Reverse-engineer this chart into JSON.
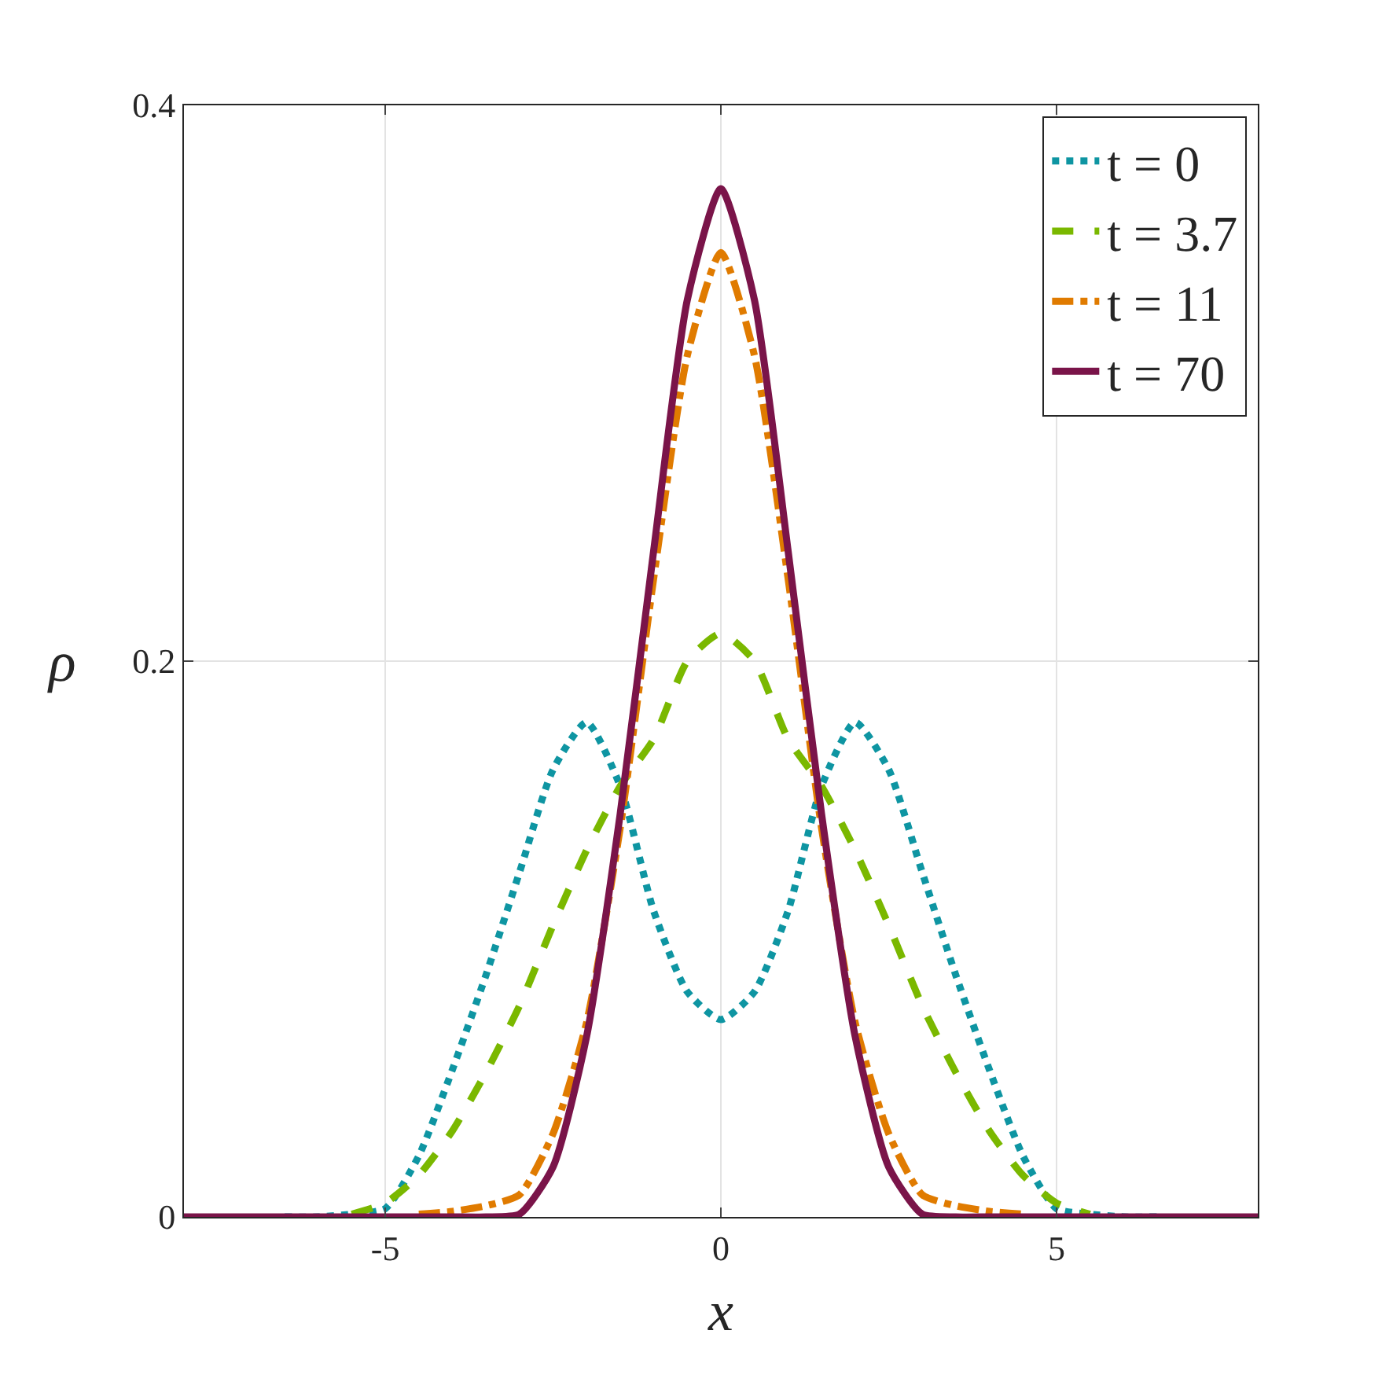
{
  "chart_data": {
    "type": "line",
    "xlabel": "x",
    "ylabel": "ρ",
    "x": [
      -8,
      -7.5,
      -7,
      -6.5,
      -6,
      -5.5,
      -5,
      -4.5,
      -4,
      -3.5,
      -3,
      -2.5,
      -2,
      -1.5,
      -1,
      -0.5,
      0,
      0.5,
      1,
      1.5,
      2,
      2.5,
      3,
      3.5,
      4,
      4.5,
      5,
      5.5,
      6,
      6.5,
      7,
      7.5,
      8
    ],
    "series": [
      {
        "name": "t = 0",
        "color": "#0e95a2",
        "line_style": "dotted",
        "x": [
          -6.5,
          -6,
          -5.5,
          -5,
          -4.5,
          -4,
          -3.5,
          -3,
          -2.5,
          -2,
          -1.5,
          -1,
          -0.5,
          0,
          0.5,
          1,
          1.5,
          2,
          2.5,
          3,
          3.5,
          4,
          4.5,
          5,
          5.5,
          6,
          6.5
        ],
        "values": [
          0,
          0,
          0.001,
          0.003,
          0.022,
          0.053,
          0.087,
          0.124,
          0.161,
          0.178,
          0.155,
          0.11,
          0.081,
          0.071,
          0.081,
          0.11,
          0.155,
          0.178,
          0.161,
          0.124,
          0.087,
          0.053,
          0.022,
          0.003,
          0.001,
          0,
          0
        ]
      },
      {
        "name": "t = 3.7",
        "color": "#7ab800",
        "line_style": "dashed",
        "x": [
          -5.5,
          -5,
          -4.5,
          -4,
          -3.5,
          -3,
          -2.5,
          -2,
          -1.5,
          -1,
          -0.5,
          0,
          0.5,
          1,
          1.5,
          2,
          2.5,
          3,
          3.5,
          4,
          4.5,
          5,
          5.5
        ],
        "values": [
          0.001,
          0.005,
          0.015,
          0.031,
          0.052,
          0.076,
          0.105,
          0.132,
          0.155,
          0.172,
          0.2,
          0.21,
          0.2,
          0.172,
          0.155,
          0.132,
          0.105,
          0.076,
          0.052,
          0.031,
          0.015,
          0.005,
          0.001
        ]
      },
      {
        "name": "t = 11",
        "color": "#e07b00",
        "line_style": "dashdot",
        "x": [
          -4.5,
          -4,
          -3.5,
          -3,
          -2.5,
          -2,
          -1.5,
          -1,
          -0.5,
          0,
          0.5,
          1,
          1.5,
          2,
          2.5,
          3,
          3.5,
          4,
          4.5
        ],
        "values": [
          0.001,
          0.002,
          0.004,
          0.008,
          0.03,
          0.07,
          0.14,
          0.23,
          0.31,
          0.347,
          0.31,
          0.23,
          0.14,
          0.07,
          0.03,
          0.008,
          0.004,
          0.002,
          0.001
        ]
      },
      {
        "name": "t = 70",
        "color": "#7a1449",
        "line_style": "solid",
        "values": [
          0,
          0,
          0,
          0,
          0,
          0,
          0,
          0,
          0,
          0,
          0.001,
          0.018,
          0.065,
          0.145,
          0.24,
          0.33,
          0.37,
          0.33,
          0.24,
          0.145,
          0.065,
          0.018,
          0.001,
          0,
          0,
          0,
          0,
          0,
          0,
          0,
          0,
          0,
          0
        ]
      }
    ],
    "xlim": [
      -8,
      8
    ],
    "xticks": [
      -5,
      0,
      5
    ],
    "ylim": [
      0,
      0.4
    ],
    "yticks": [
      0,
      0.2,
      0.4
    ],
    "grid": true,
    "legend": "top right",
    "marker": "none"
  }
}
